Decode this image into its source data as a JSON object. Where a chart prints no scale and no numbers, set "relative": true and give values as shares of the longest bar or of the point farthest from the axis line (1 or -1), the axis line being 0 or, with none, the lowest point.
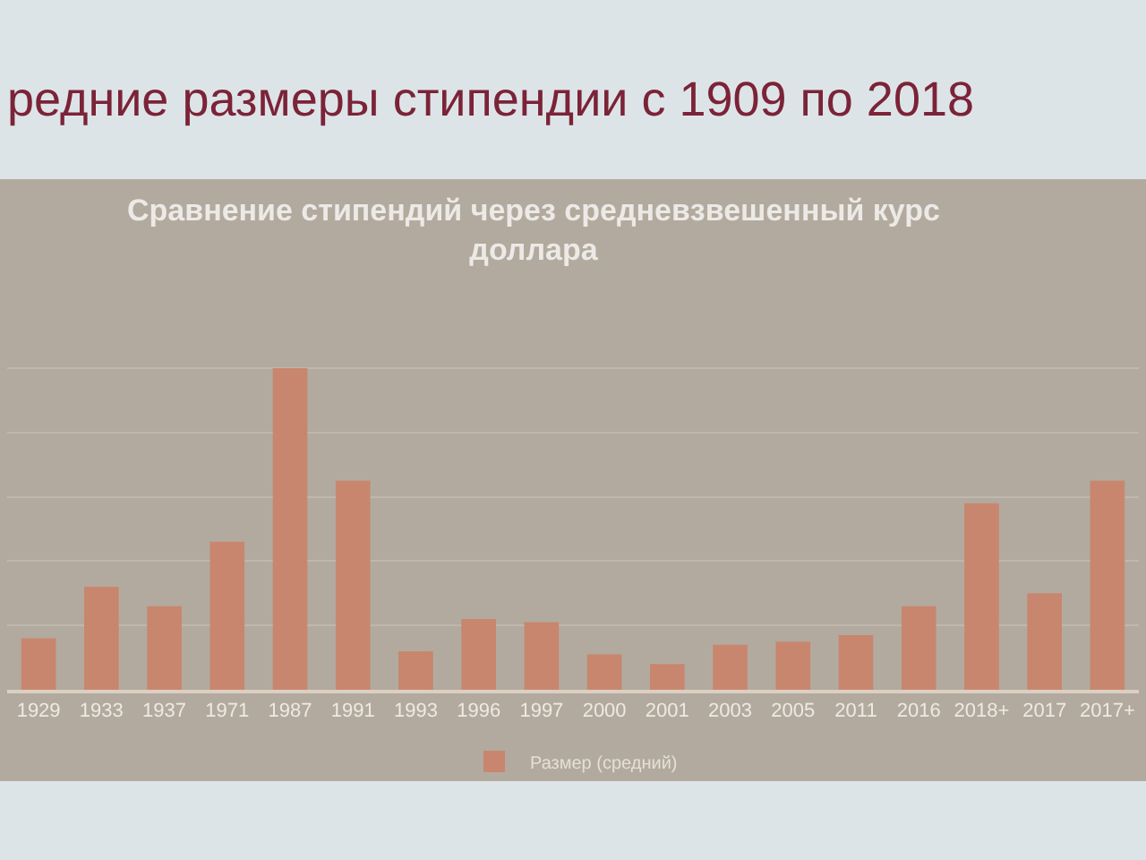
{
  "chart_data": {
    "type": "bar",
    "title": "редние размеры стипендии с 1909 по 2018",
    "subtitle": "Сравнение стипендий через средневзвешенный курс доллара",
    "categories": [
      "1929",
      "1933",
      "1937",
      "1971",
      "1987",
      "1991",
      "1993",
      "1996",
      "1997",
      "2000",
      "2001",
      "2003",
      "2005",
      "2011",
      "2016",
      "2018+",
      "2017",
      "2017+"
    ],
    "series": [
      {
        "name": "Размер (средний)",
        "color": "#c8866e",
        "values": [
          0.16,
          0.32,
          0.26,
          0.46,
          1,
          0.65,
          0.12,
          0.22,
          0.21,
          0.11,
          0.08,
          0.14,
          0.15,
          0.17,
          0.26,
          0.58,
          0.3,
          0.65
        ]
      }
    ],
    "relative": true,
    "grid": "y",
    "legend": "bottom"
  }
}
